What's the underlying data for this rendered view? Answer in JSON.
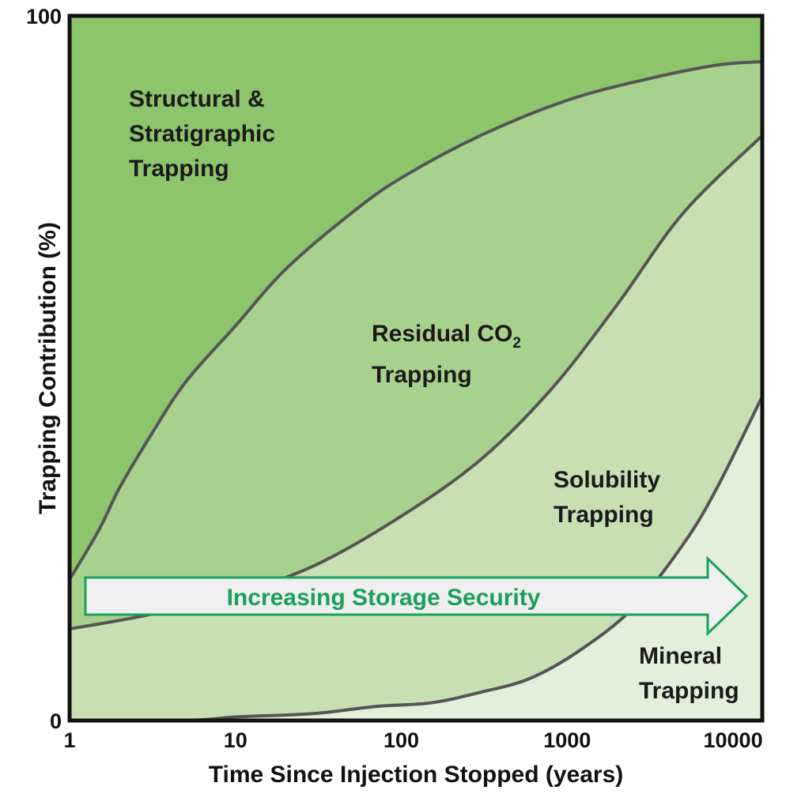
{
  "chart_data": {
    "type": "area",
    "title": "",
    "xlabel": "Time Since Injection Stopped (years)",
    "ylabel": "Trapping Contribution (%)",
    "x_scale": "log",
    "xlim": [
      1,
      15000
    ],
    "ylim": [
      0,
      100
    ],
    "x_ticks": [
      {
        "value": 1,
        "label": "1"
      },
      {
        "value": 10,
        "label": "10"
      },
      {
        "value": 100,
        "label": "100"
      },
      {
        "value": 1000,
        "label": "1000"
      },
      {
        "value": 10000,
        "label": "10000"
      }
    ],
    "y_ticks": [
      {
        "value": 0,
        "label": "0"
      },
      {
        "value": 100,
        "label": "100"
      }
    ],
    "grid": false,
    "stacking": "cumulative boundaries from bottom (Mineral) to top (Structural & Stratigraphic)",
    "series": [
      {
        "label_lines": [
          "Mineral",
          "Trapping"
        ],
        "color": "#e3efd8",
        "x": [
          1,
          5,
          10,
          30,
          70,
          150,
          300,
          600,
          1200,
          2500,
          5000,
          8000,
          15000
        ],
        "values": [
          0,
          0,
          0.5,
          1,
          2,
          2.5,
          4,
          6,
          10,
          16,
          25,
          33,
          46
        ]
      },
      {
        "label_lines": [
          "Solubility",
          "Trapping"
        ],
        "color": "#c6e0b4",
        "x": [
          1,
          3,
          10,
          30,
          100,
          300,
          800,
          2000,
          5000,
          15000
        ],
        "values": [
          13,
          15,
          18,
          22,
          29,
          37,
          47,
          59,
          72,
          83
        ]
      },
      {
        "label_lines": [
          "Residual CO",
          "Trapping"
        ],
        "label_subscript": "2",
        "color": "#a9d18e",
        "x": [
          1,
          1.5,
          2,
          3,
          5,
          10,
          20,
          50,
          100,
          300,
          1000,
          3000,
          8000,
          15000
        ],
        "values": [
          20,
          27,
          33,
          40,
          48,
          56,
          64,
          72,
          77,
          83,
          88,
          91,
          93,
          93.5
        ]
      },
      {
        "label_lines": [
          "Structural &",
          "Stratigraphic",
          "Trapping"
        ],
        "color": "#8dc46c",
        "x": [
          1,
          15000
        ],
        "values": [
          100,
          100
        ]
      }
    ],
    "annotations": [
      {
        "text": "Increasing Storage Security",
        "color": "#1aa05a",
        "arrow_direction": "right",
        "arrow_fill": "#efefef",
        "arrow_stroke": "#1aa05a"
      }
    ],
    "boundary_line_color": "#555555",
    "frame_color": "#111111"
  }
}
